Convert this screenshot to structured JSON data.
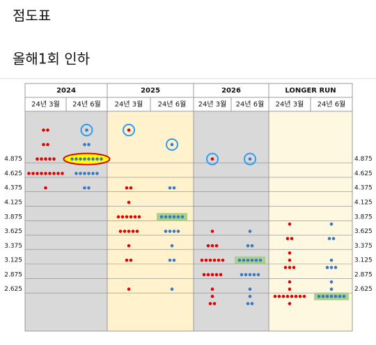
{
  "chart_data": {
    "type": "dotplot",
    "title": "점도표",
    "subtitle": "올해1회 인하",
    "ylim": [
      1.9,
      5.7
    ],
    "yticks": [
      4.875,
      4.625,
      4.375,
      4.125,
      3.875,
      3.625,
      3.375,
      3.125,
      2.875,
      2.625
    ],
    "grid": true,
    "groups": [
      {
        "name": "2024",
        "background": "#d9d9d9",
        "columns": [
          {
            "name": "24년 3월",
            "color": "#e00000",
            "dots": [
              {
                "y": 5.375,
                "count": 2
              },
              {
                "y": 5.125,
                "count": 2
              },
              {
                "y": 4.875,
                "count": 5
              },
              {
                "y": 4.625,
                "count": 9
              },
              {
                "y": 4.375,
                "count": 1
              }
            ]
          },
          {
            "name": "24년 6월",
            "color": "#3a78c0",
            "dots": [
              {
                "y": 5.375,
                "count": 1,
                "highlight": "circle"
              },
              {
                "y": 5.125,
                "count": 2
              },
              {
                "y": 4.875,
                "count": 8,
                "highlight": "ellipse"
              },
              {
                "y": 4.625,
                "count": 6
              },
              {
                "y": 4.375,
                "count": 2
              }
            ]
          }
        ]
      },
      {
        "name": "2025",
        "background": "#fff2cc",
        "columns": [
          {
            "name": "24년 3월",
            "color": "#e00000",
            "dots": [
              {
                "y": 5.375,
                "count": 1,
                "highlight": "circle"
              },
              {
                "y": 4.375,
                "count": 2
              },
              {
                "y": 4.125,
                "count": 1
              },
              {
                "y": 3.875,
                "count": 6
              },
              {
                "y": 3.625,
                "count": 5
              },
              {
                "y": 3.375,
                "count": 1
              },
              {
                "y": 3.125,
                "count": 2
              },
              {
                "y": 2.625,
                "count": 1
              }
            ]
          },
          {
            "name": "24년 6월",
            "color": "#3a78c0",
            "dots": [
              {
                "y": 5.125,
                "count": 1,
                "highlight": "circle"
              },
              {
                "y": 4.375,
                "count": 2
              },
              {
                "y": 3.875,
                "count": 6,
                "highlight": "box"
              },
              {
                "y": 3.625,
                "count": 4
              },
              {
                "y": 3.375,
                "count": 1
              },
              {
                "y": 3.125,
                "count": 2
              },
              {
                "y": 2.625,
                "count": 1
              }
            ]
          }
        ]
      },
      {
        "name": "2026",
        "background": "#d9d9d9",
        "columns": [
          {
            "name": "24년 3월",
            "color": "#e00000",
            "dots": [
              {
                "y": 4.875,
                "count": 1,
                "highlight": "circle"
              },
              {
                "y": 3.625,
                "count": 1
              },
              {
                "y": 3.375,
                "count": 3
              },
              {
                "y": 3.125,
                "count": 6
              },
              {
                "y": 2.875,
                "count": 5
              },
              {
                "y": 2.625,
                "count": 1
              },
              {
                "y": 2.5,
                "count": 1
              },
              {
                "y": 2.375,
                "count": 2
              }
            ]
          },
          {
            "name": "24년 6월",
            "color": "#3a78c0",
            "dots": [
              {
                "y": 4.875,
                "count": 1,
                "highlight": "circle"
              },
              {
                "y": 3.625,
                "count": 1
              },
              {
                "y": 3.375,
                "count": 2
              },
              {
                "y": 3.125,
                "count": 6,
                "highlight": "box"
              },
              {
                "y": 2.875,
                "count": 5
              },
              {
                "y": 2.625,
                "count": 1
              },
              {
                "y": 2.5,
                "count": 1
              },
              {
                "y": 2.375,
                "count": 2
              }
            ]
          }
        ]
      },
      {
        "name": "LONGER RUN",
        "background": "#fff8e1",
        "columns": [
          {
            "name": "24년 3월",
            "color": "#e00000",
            "dots": [
              {
                "y": 3.75,
                "count": 1
              },
              {
                "y": 3.5,
                "count": 2
              },
              {
                "y": 3.25,
                "count": 1
              },
              {
                "y": 3.125,
                "count": 1
              },
              {
                "y": 3.0,
                "count": 3
              },
              {
                "y": 2.75,
                "count": 1
              },
              {
                "y": 2.625,
                "count": 1
              },
              {
                "y": 2.5,
                "count": 8
              },
              {
                "y": 2.375,
                "count": 1
              }
            ]
          },
          {
            "name": "24년 6월",
            "color": "#3a78c0",
            "dots": [
              {
                "y": 3.75,
                "count": 1
              },
              {
                "y": 3.5,
                "count": 2
              },
              {
                "y": 3.125,
                "count": 1
              },
              {
                "y": 3.0,
                "count": 3
              },
              {
                "y": 2.75,
                "count": 1
              },
              {
                "y": 2.625,
                "count": 1
              },
              {
                "y": 2.5,
                "count": 7,
                "highlight": "box"
              }
            ]
          }
        ]
      }
    ]
  }
}
